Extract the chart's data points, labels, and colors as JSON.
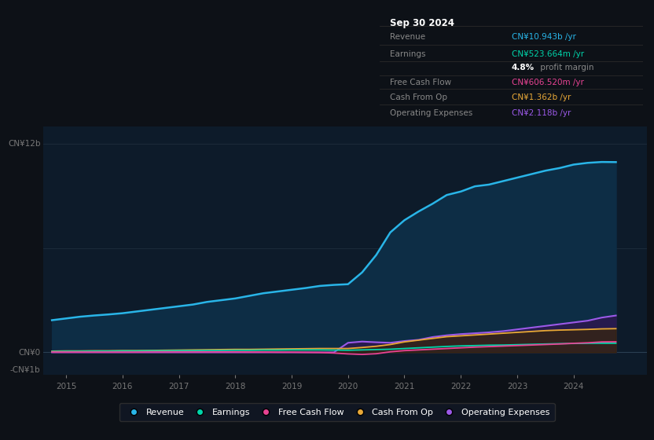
{
  "background_color": "#0d1117",
  "plot_bg_color": "#0d1b2a",
  "title_box_bg": "#000000",
  "years": [
    2014.75,
    2015.0,
    2015.25,
    2015.5,
    2015.75,
    2016.0,
    2016.25,
    2016.5,
    2016.75,
    2017.0,
    2017.25,
    2017.5,
    2017.75,
    2018.0,
    2018.25,
    2018.5,
    2018.75,
    2019.0,
    2019.25,
    2019.5,
    2019.75,
    2020.0,
    2020.25,
    2020.5,
    2020.75,
    2021.0,
    2021.25,
    2021.5,
    2021.75,
    2022.0,
    2022.25,
    2022.5,
    2022.75,
    2023.0,
    2023.25,
    2023.5,
    2023.75,
    2024.0,
    2024.25,
    2024.5,
    2024.75
  ],
  "revenue": [
    1.85,
    1.95,
    2.05,
    2.12,
    2.18,
    2.25,
    2.35,
    2.45,
    2.55,
    2.65,
    2.75,
    2.9,
    3.0,
    3.1,
    3.25,
    3.4,
    3.5,
    3.6,
    3.7,
    3.82,
    3.88,
    3.92,
    4.6,
    5.6,
    6.9,
    7.6,
    8.1,
    8.55,
    9.05,
    9.25,
    9.55,
    9.65,
    9.85,
    10.05,
    10.25,
    10.45,
    10.6,
    10.8,
    10.9,
    10.95,
    10.943
  ],
  "earnings": [
    0.05,
    0.06,
    0.06,
    0.07,
    0.07,
    0.08,
    0.08,
    0.09,
    0.09,
    0.1,
    0.1,
    0.11,
    0.11,
    0.12,
    0.12,
    0.13,
    0.13,
    0.14,
    0.14,
    0.14,
    0.13,
    0.12,
    0.14,
    0.16,
    0.18,
    0.22,
    0.26,
    0.3,
    0.34,
    0.37,
    0.39,
    0.41,
    0.42,
    0.44,
    0.46,
    0.48,
    0.5,
    0.51,
    0.52,
    0.523,
    0.5237
  ],
  "free_cash_flow": [
    0.02,
    0.02,
    0.02,
    0.02,
    0.02,
    0.02,
    0.02,
    0.03,
    0.03,
    0.03,
    0.03,
    0.03,
    0.03,
    0.03,
    0.02,
    0.02,
    0.01,
    0.01,
    0.0,
    -0.01,
    -0.04,
    -0.09,
    -0.12,
    -0.08,
    0.03,
    0.1,
    0.14,
    0.18,
    0.22,
    0.26,
    0.3,
    0.33,
    0.36,
    0.39,
    0.42,
    0.45,
    0.48,
    0.52,
    0.55,
    0.6,
    0.6065
  ],
  "cash_from_op": [
    0.07,
    0.08,
    0.08,
    0.09,
    0.09,
    0.1,
    0.1,
    0.11,
    0.12,
    0.13,
    0.14,
    0.15,
    0.16,
    0.17,
    0.17,
    0.18,
    0.19,
    0.2,
    0.21,
    0.22,
    0.22,
    0.22,
    0.28,
    0.35,
    0.45,
    0.6,
    0.7,
    0.8,
    0.9,
    0.95,
    1.0,
    1.05,
    1.1,
    1.15,
    1.2,
    1.25,
    1.28,
    1.3,
    1.32,
    1.35,
    1.362
  ],
  "operating_expenses": [
    0.0,
    0.0,
    0.0,
    0.0,
    0.0,
    0.0,
    0.0,
    0.0,
    0.0,
    0.0,
    0.0,
    0.0,
    0.0,
    0.0,
    0.0,
    0.0,
    0.0,
    0.0,
    0.0,
    0.0,
    0.0,
    0.55,
    0.62,
    0.58,
    0.55,
    0.65,
    0.72,
    0.88,
    0.98,
    1.05,
    1.1,
    1.15,
    1.22,
    1.32,
    1.42,
    1.52,
    1.62,
    1.72,
    1.82,
    2.0,
    2.118
  ],
  "revenue_color": "#29b5e8",
  "revenue_fill": "#0d2d45",
  "earnings_color": "#00d4aa",
  "free_cash_flow_color": "#e84393",
  "cash_from_op_color": "#e8a838",
  "operating_expenses_color": "#9b59e8",
  "operating_expenses_fill": "#2a1a4e",
  "xlim": [
    2014.6,
    2025.3
  ],
  "ylim": [
    -1.3,
    13.0
  ],
  "xticks": [
    2015,
    2016,
    2017,
    2018,
    2019,
    2020,
    2021,
    2022,
    2023,
    2024
  ],
  "ytick_labels": [
    "CN¥12b",
    "CN¥0",
    "-CN¥1b"
  ],
  "ytick_positions": [
    12,
    0,
    -1
  ],
  "grid_lines": [
    12,
    6,
    0
  ],
  "legend_items": [
    {
      "label": "Revenue",
      "color": "#29b5e8"
    },
    {
      "label": "Earnings",
      "color": "#00d4aa"
    },
    {
      "label": "Free Cash Flow",
      "color": "#e84393"
    },
    {
      "label": "Cash From Op",
      "color": "#e8a838"
    },
    {
      "label": "Operating Expenses",
      "color": "#9b59e8"
    }
  ],
  "info_date": "Sep 30 2024",
  "info_rows": [
    {
      "label": "Revenue",
      "value": "CN¥10.943b /yr",
      "value_color": "#29b5e8",
      "has_sub": false
    },
    {
      "label": "Earnings",
      "value": "CN¥523.664m /yr",
      "value_color": "#00d4aa",
      "has_sub": true,
      "sub_bold": "4.8%",
      "sub_text": " profit margin"
    },
    {
      "label": "Free Cash Flow",
      "value": "CN¥606.520m /yr",
      "value_color": "#e84393",
      "has_sub": false
    },
    {
      "label": "Cash From Op",
      "value": "CN¥1.362b /yr",
      "value_color": "#e8a838",
      "has_sub": false
    },
    {
      "label": "Operating Expenses",
      "value": "CN¥2.118b /yr",
      "value_color": "#9b59e8",
      "has_sub": false
    }
  ]
}
